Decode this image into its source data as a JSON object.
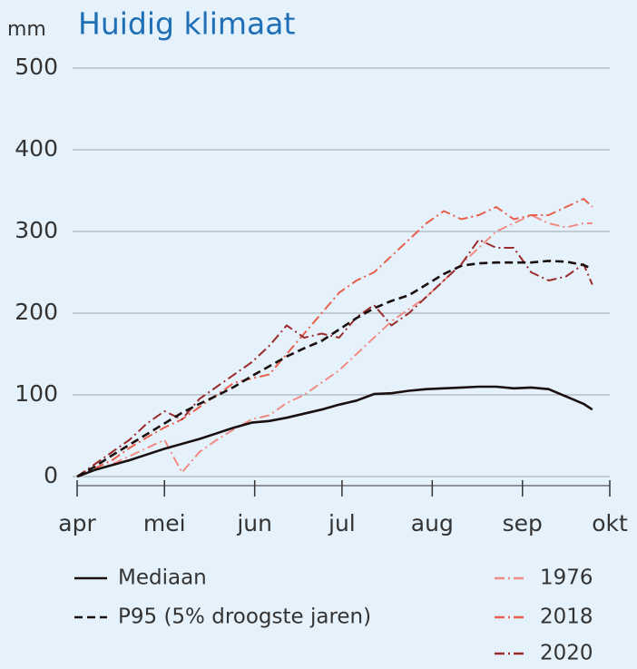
{
  "chart_data": {
    "type": "line",
    "unit": "mm",
    "title": "Huidig klimaat",
    "x": [
      0,
      6,
      12,
      18,
      24,
      30,
      36,
      42,
      48,
      54,
      60,
      66,
      72,
      78,
      84,
      90,
      96,
      102,
      108,
      114,
      120,
      126,
      132,
      138,
      144,
      150,
      156,
      162,
      168,
      174,
      177
    ],
    "xlim": [
      0,
      183
    ],
    "xticks": [
      {
        "value": 0,
        "label": "apr"
      },
      {
        "value": 30,
        "label": "mei"
      },
      {
        "value": 61,
        "label": "jun"
      },
      {
        "value": 91,
        "label": "jul"
      },
      {
        "value": 122,
        "label": "aug"
      },
      {
        "value": 153,
        "label": "sep"
      },
      {
        "value": 183,
        "label": "okt"
      }
    ],
    "ylim": [
      0,
      500
    ],
    "yticks": [
      0,
      100,
      200,
      300,
      400,
      500
    ],
    "grid": true,
    "series": [
      {
        "name": "Mediaan",
        "color": "#1a1010",
        "dash": "solid",
        "values": [
          0,
          8,
          14,
          20,
          27,
          34,
          40,
          46,
          53,
          60,
          66,
          68,
          72,
          77,
          82,
          88,
          93,
          101,
          102,
          105,
          107,
          108,
          109,
          110,
          110,
          108,
          109,
          107,
          98,
          89,
          82
        ]
      },
      {
        "name": "P95 (5% droogste jaren)",
        "color": "#1a1010",
        "dash": "dashed",
        "values": [
          0,
          12,
          26,
          39,
          52,
          65,
          78,
          89,
          99,
          110,
          123,
          135,
          147,
          157,
          166,
          180,
          194,
          206,
          215,
          222,
          235,
          248,
          258,
          261,
          262,
          262,
          262,
          264,
          263,
          259,
          254
        ]
      },
      {
        "name": "1976",
        "color": "#f08c84",
        "dash": "dashdot",
        "values": [
          0,
          8,
          15,
          25,
          35,
          45,
          5,
          30,
          45,
          58,
          70,
          75,
          90,
          100,
          115,
          130,
          150,
          170,
          190,
          205,
          220,
          240,
          260,
          280,
          300,
          310,
          320,
          310,
          305,
          310,
          310
        ]
      },
      {
        "name": "2018",
        "color": "#e8604c",
        "dash": "dashdot",
        "values": [
          0,
          10,
          20,
          35,
          48,
          60,
          70,
          85,
          100,
          115,
          120,
          125,
          150,
          175,
          200,
          225,
          240,
          250,
          270,
          290,
          310,
          325,
          315,
          320,
          330,
          315,
          320,
          320,
          330,
          340,
          330
        ]
      },
      {
        "name": "2020",
        "color": "#9b2c2c",
        "dash": "dashdot",
        "values": [
          0,
          15,
          30,
          45,
          65,
          80,
          70,
          95,
          110,
          125,
          140,
          160,
          185,
          170,
          175,
          170,
          195,
          210,
          185,
          200,
          220,
          240,
          260,
          290,
          280,
          280,
          250,
          240,
          245,
          260,
          235
        ]
      }
    ]
  }
}
